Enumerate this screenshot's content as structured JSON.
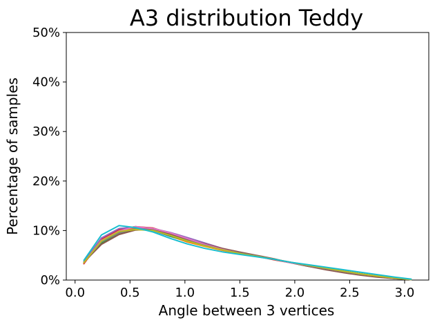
{
  "chart_data": {
    "type": "line",
    "title": "A3 distribution Teddy",
    "xlabel": "Angle between 3 vertices",
    "ylabel": "Percentage of samples",
    "xlim": [
      -0.08,
      3.22
    ],
    "ylim": [
      0,
      50
    ],
    "xticks": [
      0.0,
      0.5,
      1.0,
      1.5,
      2.0,
      2.5,
      3.0
    ],
    "xtick_labels": [
      "0.0",
      "0.5",
      "1.0",
      "1.5",
      "2.0",
      "2.5",
      "3.0"
    ],
    "yticks": [
      0,
      10,
      20,
      30,
      40,
      50
    ],
    "ytick_labels": [
      "0%",
      "10%",
      "20%",
      "30%",
      "40%",
      "50%"
    ],
    "grid": false,
    "x": [
      0.08,
      0.24,
      0.4,
      0.55,
      0.71,
      0.87,
      1.02,
      1.18,
      1.34,
      1.49,
      1.65,
      1.81,
      1.96,
      2.12,
      2.28,
      2.44,
      2.59,
      2.75,
      2.91,
      3.06
    ],
    "series": [
      {
        "color": "#1f77b4",
        "values": [
          3.6,
          7.3,
          9.3,
          10.4,
          10.0,
          8.8,
          7.8,
          6.9,
          6.1,
          5.5,
          4.8,
          4.2,
          3.6,
          3.0,
          2.4,
          1.8,
          1.3,
          0.8,
          0.4,
          0.1
        ]
      },
      {
        "color": "#ff7f0e",
        "values": [
          3.4,
          7.8,
          9.6,
          10.6,
          10.1,
          8.9,
          7.7,
          6.8,
          6.0,
          5.4,
          4.8,
          4.2,
          3.6,
          3.0,
          2.4,
          1.8,
          1.3,
          0.8,
          0.4,
          0.1
        ]
      },
      {
        "color": "#2ca02c",
        "values": [
          3.5,
          7.5,
          9.5,
          10.3,
          10.2,
          8.9,
          7.9,
          7.0,
          6.2,
          5.6,
          4.9,
          4.2,
          3.5,
          2.8,
          2.2,
          1.6,
          1.1,
          0.7,
          0.3,
          0.1
        ]
      },
      {
        "color": "#d62728",
        "values": [
          3.3,
          8.2,
          10.2,
          10.8,
          10.5,
          9.4,
          8.2,
          7.1,
          6.1,
          5.4,
          4.8,
          4.1,
          3.5,
          2.9,
          2.3,
          1.8,
          1.3,
          0.8,
          0.4,
          0.1
        ]
      },
      {
        "color": "#9467bd",
        "values": [
          3.7,
          8.5,
          10.4,
          10.7,
          10.4,
          9.6,
          8.6,
          7.5,
          6.4,
          5.6,
          4.9,
          4.2,
          3.5,
          2.9,
          2.3,
          1.7,
          1.2,
          0.8,
          0.4,
          0.1
        ]
      },
      {
        "color": "#8c564b",
        "values": [
          3.6,
          7.2,
          9.2,
          10.1,
          10.3,
          9.2,
          8.3,
          7.3,
          6.4,
          5.7,
          5.0,
          4.3,
          3.5,
          2.8,
          2.1,
          1.5,
          1.0,
          0.6,
          0.3,
          0.1
        ]
      },
      {
        "color": "#e377c2",
        "values": [
          3.5,
          8.0,
          9.9,
          10.8,
          10.4,
          9.5,
          8.4,
          7.2,
          6.2,
          5.5,
          4.8,
          4.2,
          3.5,
          2.9,
          2.3,
          1.7,
          1.2,
          0.8,
          0.4,
          0.1
        ]
      },
      {
        "color": "#7f7f7f",
        "values": [
          3.6,
          7.7,
          9.5,
          10.4,
          10.1,
          9.0,
          8.0,
          7.0,
          6.1,
          5.5,
          4.9,
          4.2,
          3.6,
          2.9,
          2.3,
          1.7,
          1.2,
          0.8,
          0.4,
          0.1
        ]
      },
      {
        "color": "#bcbd22",
        "values": [
          3.5,
          7.9,
          9.8,
          10.2,
          10.0,
          9.0,
          7.9,
          6.9,
          6.1,
          5.4,
          4.8,
          4.2,
          3.6,
          3.0,
          2.4,
          1.8,
          1.3,
          0.8,
          0.4,
          0.1
        ]
      },
      {
        "color": "#17becf",
        "values": [
          4.0,
          9.1,
          11.0,
          10.6,
          9.7,
          8.4,
          7.3,
          6.4,
          5.7,
          5.2,
          4.7,
          4.2,
          3.6,
          3.1,
          2.6,
          2.1,
          1.6,
          1.1,
          0.6,
          0.2
        ]
      }
    ]
  }
}
